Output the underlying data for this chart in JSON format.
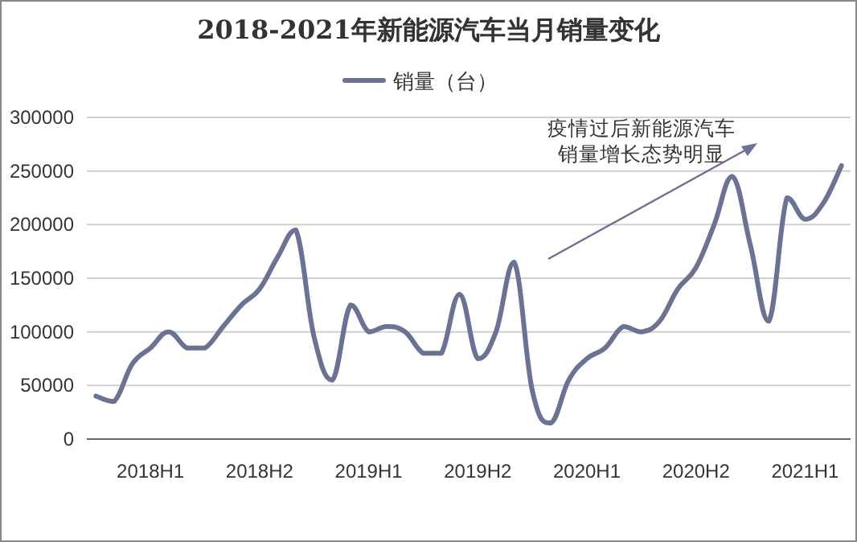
{
  "chart_data": {
    "type": "line",
    "title": "2018-2021年新能源汽车当月销量变化",
    "categories": [
      null,
      null,
      null,
      "2018H1",
      null,
      null,
      null,
      null,
      null,
      "2018H2",
      null,
      null,
      null,
      null,
      null,
      "2019H1",
      null,
      null,
      null,
      null,
      null,
      "2019H2",
      null,
      null,
      null,
      null,
      null,
      "2020H1",
      null,
      null,
      null,
      null,
      null,
      "2020H2",
      null,
      null,
      null,
      null,
      null,
      "2021H1",
      null,
      null
    ],
    "series": [
      {
        "name": "销量（台）",
        "color": "#6b7394",
        "values": [
          40000,
          35000,
          70000,
          85000,
          100000,
          85000,
          85000,
          105000,
          125000,
          140000,
          170000,
          195000,
          95000,
          55000,
          125000,
          100000,
          105000,
          100000,
          80000,
          80000,
          135000,
          75000,
          100000,
          165000,
          45000,
          15000,
          55000,
          75000,
          85000,
          105000,
          100000,
          110000,
          140000,
          160000,
          200000,
          245000,
          180000,
          110000,
          225000,
          205000,
          220000,
          255000
        ]
      }
    ],
    "ylim": [
      0,
      300000
    ],
    "yticks": [
      0,
      50000,
      100000,
      150000,
      200000,
      250000,
      300000
    ],
    "annotations": [
      "疫情过后新能源汽车",
      "销量增长态势明显"
    ],
    "grid": "y",
    "legend": "top",
    "marker": "none",
    "line_style": "solid"
  }
}
